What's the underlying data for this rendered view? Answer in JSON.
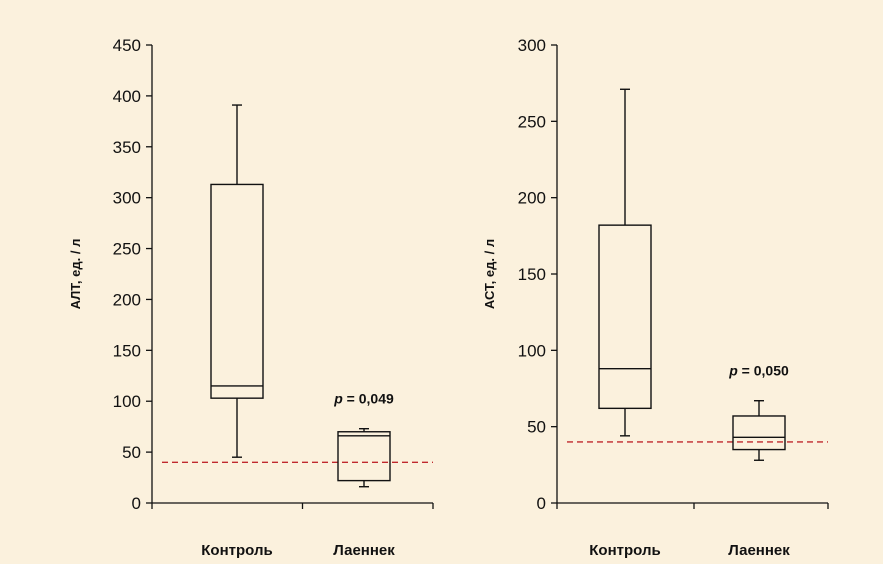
{
  "colors": {
    "background": "#fbf1dd",
    "axis": "#111111",
    "box": "#111111",
    "reference": "#c0282d"
  },
  "chart_data": [
    {
      "type": "boxplot",
      "ylabel": "АЛТ, ед. / л",
      "ylim": [
        0,
        450
      ],
      "yticks": [
        0,
        50,
        100,
        150,
        200,
        250,
        300,
        350,
        400,
        450
      ],
      "categories": [
        "Контроль",
        "Лаеннек"
      ],
      "boxes": [
        {
          "category": "Контроль",
          "whisker_low": 45,
          "q1": 103,
          "median": 115,
          "q3": 313,
          "whisker_high": 391
        },
        {
          "category": "Лаеннек",
          "whisker_low": 16,
          "q1": 22,
          "median": 66,
          "q3": 70,
          "whisker_high": 73
        }
      ],
      "reference_line": 40,
      "annotation": {
        "p_symbol": "p",
        "text": " = 0,049",
        "category": "Лаеннек"
      },
      "grid": false
    },
    {
      "type": "boxplot",
      "ylabel": "АСТ, ед. / л",
      "ylim": [
        0,
        300
      ],
      "yticks": [
        0,
        50,
        100,
        150,
        200,
        250,
        300
      ],
      "categories": [
        "Контроль",
        "Лаеннек"
      ],
      "boxes": [
        {
          "category": "Контроль",
          "whisker_low": 44,
          "q1": 62,
          "median": 88,
          "q3": 182,
          "whisker_high": 271
        },
        {
          "category": "Лаеннек",
          "whisker_low": 28,
          "q1": 35,
          "median": 43,
          "q3": 57,
          "whisker_high": 67
        }
      ],
      "reference_line": 40,
      "annotation": {
        "p_symbol": "p",
        "text": " = 0,050",
        "category": "Лаеннек"
      },
      "grid": false
    }
  ]
}
